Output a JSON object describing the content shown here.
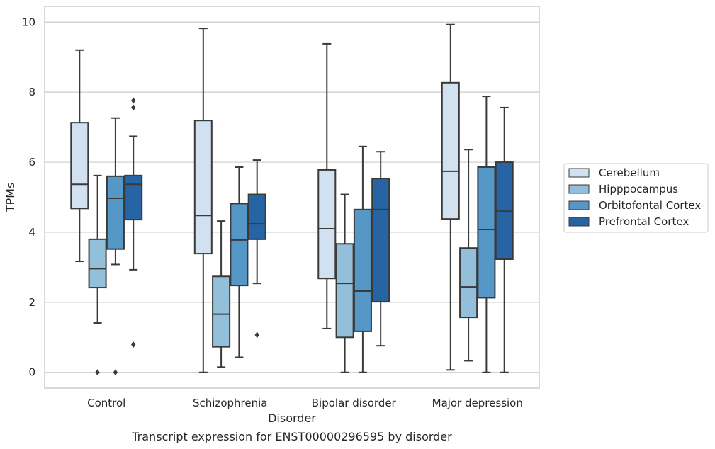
{
  "chart_data": {
    "type": "box",
    "title": "",
    "caption": "Transcript expression for ENST00000296595 by disorder",
    "xlabel": "Disorder",
    "ylabel": "TPMs",
    "ylim": [
      -0.45,
      10.45
    ],
    "yticks": [
      0,
      2,
      4,
      6,
      8,
      10
    ],
    "grid": "horizontal",
    "legend_position": "right",
    "categories": [
      "Control",
      "Schizophrenia",
      "Bipolar disorder",
      "Major depression"
    ],
    "series": [
      {
        "name": "Cerebellum",
        "color": "#d1e1f0",
        "boxes": [
          {
            "min": 3.17,
            "q1": 4.68,
            "median": 5.37,
            "q3": 7.13,
            "max": 9.2,
            "outliers": []
          },
          {
            "min": 0.0,
            "q1": 3.39,
            "median": 4.48,
            "q3": 7.19,
            "max": 9.82,
            "outliers": []
          },
          {
            "min": 1.25,
            "q1": 2.68,
            "median": 4.1,
            "q3": 5.78,
            "max": 9.38,
            "outliers": []
          },
          {
            "min": 0.07,
            "q1": 4.38,
            "median": 5.74,
            "q3": 8.27,
            "max": 9.93,
            "outliers": []
          }
        ]
      },
      {
        "name": "Hipppocampus",
        "color": "#94bfdb",
        "boxes": [
          {
            "min": 1.41,
            "q1": 2.42,
            "median": 2.96,
            "q3": 3.8,
            "max": 5.62,
            "outliers": [
              0.0
            ]
          },
          {
            "min": 0.15,
            "q1": 0.73,
            "median": 1.66,
            "q3": 2.74,
            "max": 4.32,
            "outliers": []
          },
          {
            "min": 0.0,
            "q1": 1.0,
            "median": 2.54,
            "q3": 3.67,
            "max": 5.08,
            "outliers": []
          },
          {
            "min": 0.33,
            "q1": 1.57,
            "median": 2.44,
            "q3": 3.55,
            "max": 6.36,
            "outliers": []
          }
        ]
      },
      {
        "name": "Orbitofontal Cortex",
        "color": "#5597c6",
        "boxes": [
          {
            "min": 3.08,
            "q1": 3.52,
            "median": 4.97,
            "q3": 5.6,
            "max": 7.26,
            "outliers": [
              0.0
            ]
          },
          {
            "min": 0.43,
            "q1": 2.48,
            "median": 3.78,
            "q3": 4.82,
            "max": 5.86,
            "outliers": []
          },
          {
            "min": 0.0,
            "q1": 1.17,
            "median": 2.32,
            "q3": 4.65,
            "max": 6.45,
            "outliers": []
          },
          {
            "min": 0.0,
            "q1": 2.13,
            "median": 4.08,
            "q3": 5.86,
            "max": 7.88,
            "outliers": []
          }
        ]
      },
      {
        "name": "Prefrontal Cortex",
        "color": "#2764a3",
        "boxes": [
          {
            "min": 2.93,
            "q1": 4.36,
            "median": 5.37,
            "q3": 5.62,
            "max": 6.74,
            "outliers": [
              7.76,
              7.56,
              0.79
            ]
          },
          {
            "min": 2.54,
            "q1": 3.8,
            "median": 4.24,
            "q3": 5.08,
            "max": 6.06,
            "outliers": [
              1.07
            ]
          },
          {
            "min": 0.76,
            "q1": 2.02,
            "median": 4.65,
            "q3": 5.53,
            "max": 6.3,
            "outliers": []
          },
          {
            "min": 0.0,
            "q1": 3.23,
            "median": 4.6,
            "q3": 6.0,
            "max": 7.56,
            "outliers": []
          }
        ]
      }
    ]
  }
}
